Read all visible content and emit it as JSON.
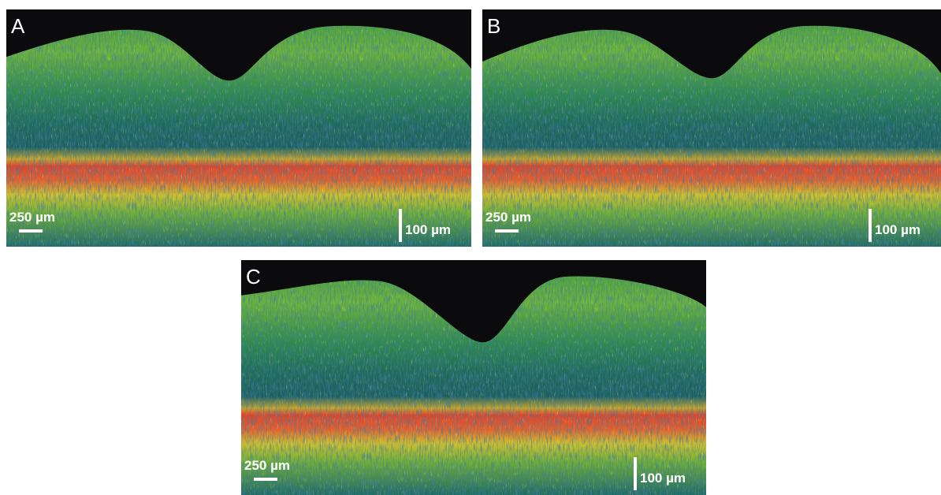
{
  "panels": [
    {
      "label": "A",
      "scale_horizontal": "250 µm",
      "scale_vertical": "100 µm"
    },
    {
      "label": "B",
      "scale_horizontal": "250 µm",
      "scale_vertical": "100 µm"
    },
    {
      "label": "C",
      "scale_horizontal": "250 µm",
      "scale_vertical": "100 µm"
    }
  ]
}
